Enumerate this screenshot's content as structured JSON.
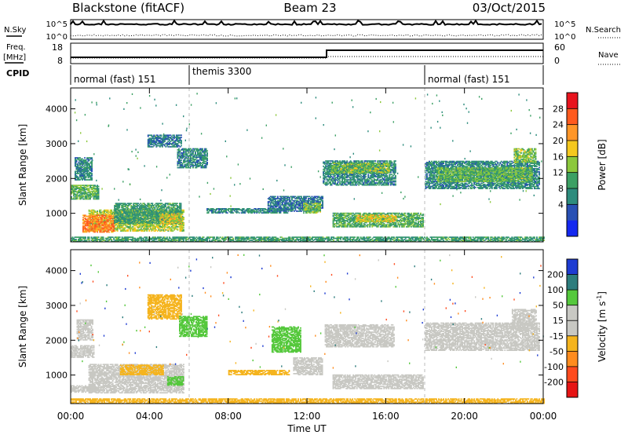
{
  "header": {
    "station": "Blackstone (fitACF)",
    "beam": "Beam 23",
    "date": "03/Oct/2015"
  },
  "summary_panels": {
    "nsky": {
      "label": "N.Sky",
      "ticks": [
        "10^5",
        "10^0"
      ]
    },
    "nsearch": {
      "label": "N.Search",
      "ticks": [
        "10^5",
        "10^0"
      ]
    },
    "freq": {
      "label_line1": "Freq.",
      "label_line2": "[MHz]",
      "ticks": [
        "18",
        "8"
      ]
    },
    "nave": {
      "label": "Nave",
      "ticks": [
        "60",
        "0"
      ]
    },
    "cpid": {
      "label": "CPID",
      "segments": [
        {
          "name": "normal (fast) 151",
          "start": 0,
          "end": 6
        },
        {
          "name": "themis 3300",
          "start": 6,
          "end": 18
        },
        {
          "name": "normal (fast) 151",
          "start": 18,
          "end": 24
        }
      ]
    }
  },
  "colorbars": {
    "power": {
      "label": "Power [dB]",
      "ticks": [
        "28",
        "24",
        "20",
        "16",
        "12",
        "8",
        "4"
      ],
      "colors": [
        "#e8141e",
        "#ff5a1e",
        "#ff9628",
        "#f5c81e",
        "#8cc83c",
        "#3ca064",
        "#2d8c7d",
        "#2850b4",
        "#1428f0"
      ]
    },
    "velocity": {
      "label_main": "Velocity [m s",
      "label_sup": "-1",
      "label_end": "]",
      "ticks": [
        "200",
        "100",
        "50",
        "15",
        "-15",
        "-50",
        "-100",
        "-200"
      ],
      "colors": [
        "#1e3cd2",
        "#2d7d7d",
        "#55c83c",
        "#c8c8c3",
        "#c8c8c3",
        "#f5b41e",
        "#ff8c1e",
        "#ff4b1e",
        "#e61414"
      ]
    }
  },
  "chart_data": {
    "type": "heatmap",
    "xlabel": "Time UT",
    "ylabel": "Slant Range [km]",
    "x_range_hours": [
      0,
      24
    ],
    "x_tick_labels": [
      "00:00",
      "04:00",
      "08:00",
      "12:00",
      "16:00",
      "20:00",
      "00:00"
    ],
    "y_range_km": [
      180,
      4600
    ],
    "y_tick_labels": [
      "1000",
      "2000",
      "3000",
      "4000"
    ],
    "y_ticks_km": [
      1000,
      2000,
      3000,
      4000
    ],
    "power_regions": [
      {
        "t0": 0.9,
        "t1": 5.7,
        "r0": 480,
        "r1": 1100,
        "power_db": 16
      },
      {
        "t0": 0.6,
        "t1": 2.2,
        "r0": 450,
        "r1": 950,
        "power_db": 24
      },
      {
        "t0": 2.2,
        "t1": 5.6,
        "r0": 700,
        "r1": 1300,
        "power_db": 10
      },
      {
        "t0": 4.5,
        "t1": 5.6,
        "r0": 700,
        "r1": 1000,
        "power_db": 18
      },
      {
        "t0": 0.0,
        "t1": 1.4,
        "r0": 1400,
        "r1": 1800,
        "power_db": 12
      },
      {
        "t0": 0.2,
        "t1": 1.1,
        "r0": 1950,
        "r1": 2600,
        "power_db": 8
      },
      {
        "t0": 3.9,
        "t1": 5.6,
        "r0": 2900,
        "r1": 3250,
        "power_db": 6
      },
      {
        "t0": 5.4,
        "t1": 6.9,
        "r0": 2300,
        "r1": 2850,
        "power_db": 8
      },
      {
        "t0": 6.9,
        "t1": 11.0,
        "r0": 1000,
        "r1": 1150,
        "power_db": 8
      },
      {
        "t0": 10.0,
        "t1": 12.8,
        "r0": 1050,
        "r1": 1500,
        "power_db": 6
      },
      {
        "t0": 11.8,
        "t1": 12.7,
        "r0": 1000,
        "r1": 1300,
        "power_db": 14
      },
      {
        "t0": 12.8,
        "t1": 16.5,
        "r0": 1800,
        "r1": 2500,
        "power_db": 8
      },
      {
        "t0": 13.2,
        "t1": 16.2,
        "r0": 2150,
        "r1": 2450,
        "power_db": 14
      },
      {
        "t0": 13.3,
        "t1": 17.9,
        "r0": 600,
        "r1": 1000,
        "power_db": 12
      },
      {
        "t0": 14.5,
        "t1": 16.5,
        "r0": 750,
        "r1": 950,
        "power_db": 18
      },
      {
        "t0": 18.0,
        "t1": 23.8,
        "r0": 1700,
        "r1": 2500,
        "power_db": 8
      },
      {
        "t0": 18.6,
        "t1": 23.4,
        "r0": 1900,
        "r1": 2300,
        "power_db": 13
      },
      {
        "t0": 22.5,
        "t1": 23.6,
        "r0": 2450,
        "r1": 2850,
        "power_db": 14
      },
      {
        "t0": 0.0,
        "t1": 24.0,
        "r0": 180,
        "r1": 330,
        "power_db": 10
      }
    ],
    "velocity_regions": [
      {
        "t0": 0.9,
        "t1": 5.7,
        "r0": 480,
        "r1": 1300,
        "velocity_ms": 0
      },
      {
        "t0": 2.5,
        "t1": 4.7,
        "r0": 1000,
        "r1": 1300,
        "velocity_ms": -60
      },
      {
        "t0": 4.9,
        "t1": 5.7,
        "r0": 700,
        "r1": 950,
        "velocity_ms": 40
      },
      {
        "t0": 0.0,
        "t1": 1.3,
        "r0": 500,
        "r1": 700,
        "velocity_ms": 0
      },
      {
        "t0": 0.0,
        "t1": 1.2,
        "r0": 1500,
        "r1": 1850,
        "velocity_ms": 0
      },
      {
        "t0": 0.3,
        "t1": 1.1,
        "r0": 2000,
        "r1": 2600,
        "velocity_ms": 0
      },
      {
        "t0": 3.9,
        "t1": 5.6,
        "r0": 2600,
        "r1": 3300,
        "velocity_ms": -60
      },
      {
        "t0": 5.5,
        "t1": 6.9,
        "r0": 2100,
        "r1": 2700,
        "velocity_ms": 40
      },
      {
        "t0": 8.0,
        "t1": 11.1,
        "r0": 1000,
        "r1": 1150,
        "velocity_ms": -60
      },
      {
        "t0": 10.2,
        "t1": 11.7,
        "r0": 1650,
        "r1": 2400,
        "velocity_ms": 40
      },
      {
        "t0": 11.3,
        "t1": 12.8,
        "r0": 1000,
        "r1": 1500,
        "velocity_ms": 0
      },
      {
        "t0": 12.9,
        "t1": 16.4,
        "r0": 1800,
        "r1": 2450,
        "velocity_ms": 0
      },
      {
        "t0": 13.3,
        "t1": 17.9,
        "r0": 600,
        "r1": 1000,
        "velocity_ms": 0
      },
      {
        "t0": 18.0,
        "t1": 23.8,
        "r0": 1700,
        "r1": 2500,
        "velocity_ms": 0
      },
      {
        "t0": 22.4,
        "t1": 23.6,
        "r0": 2300,
        "r1": 2900,
        "velocity_ms": 0
      },
      {
        "t0": 0.0,
        "t1": 24.0,
        "r0": 180,
        "r1": 330,
        "velocity_ms": -50
      }
    ]
  }
}
